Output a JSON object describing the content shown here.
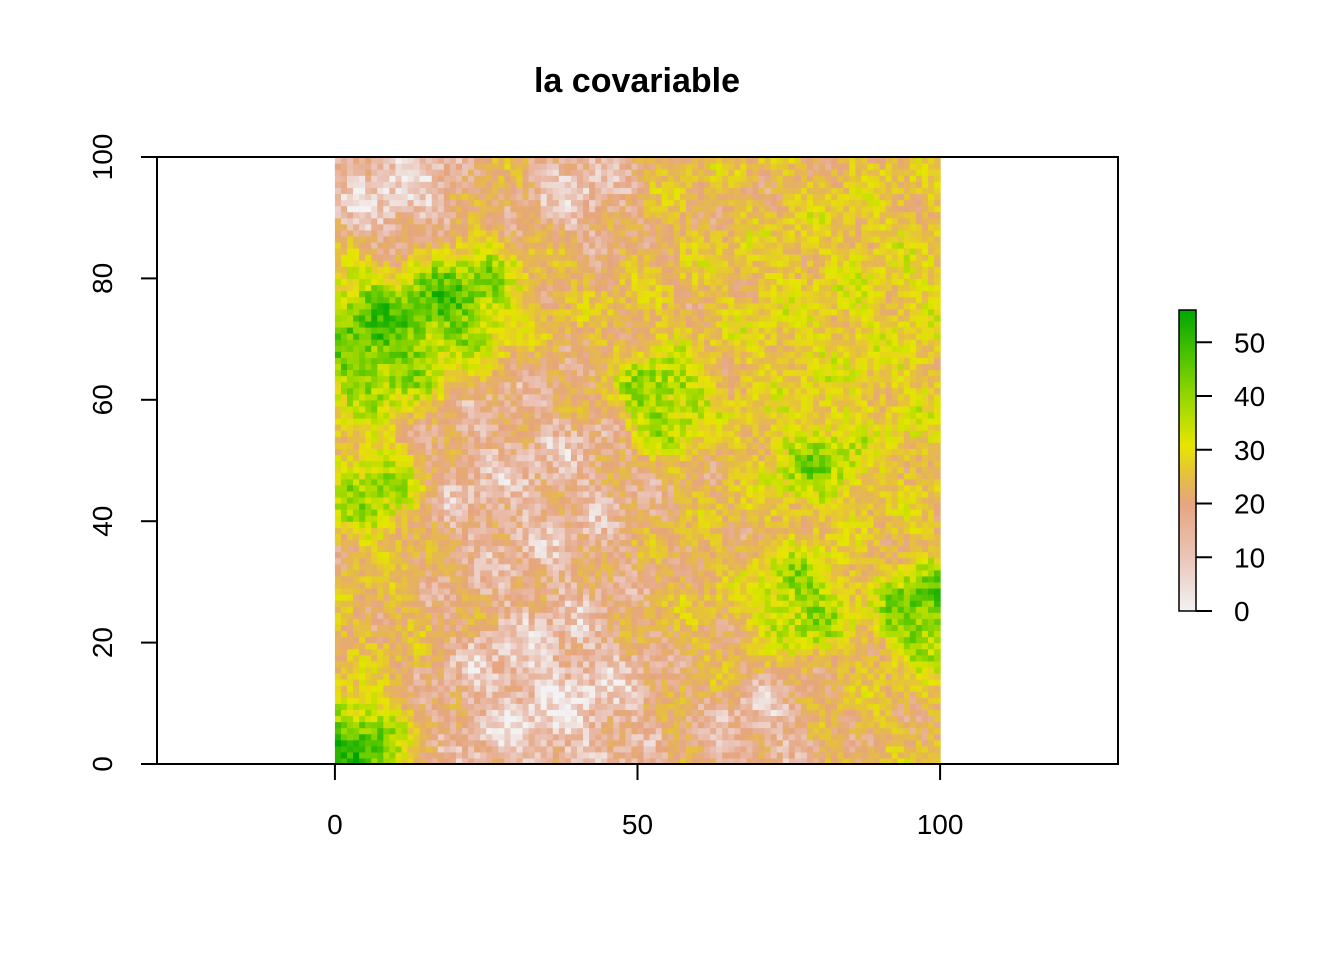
{
  "chart_data": {
    "type": "heatmap",
    "title": "la covariable",
    "xlabel": "",
    "ylabel": "",
    "xlim": [
      -29.4,
      129.4
    ],
    "ylim": [
      0,
      100
    ],
    "raster_extent": {
      "x": [
        0,
        100
      ],
      "y": [
        0,
        100
      ]
    },
    "raster_resolution": [
      100,
      100
    ],
    "x_ticks": [
      0,
      50,
      100
    ],
    "y_ticks": [
      0,
      20,
      40,
      60,
      80,
      100
    ],
    "value_range": [
      0,
      56
    ],
    "legend": {
      "position": "right",
      "ticks": [
        0,
        10,
        20,
        30,
        40,
        50
      ],
      "colors": [
        "#f2f2f2",
        "#eac4b8",
        "#e6a57f",
        "#e6bf3f",
        "#e6e600",
        "#9bd800",
        "#4cc300",
        "#00a600"
      ]
    },
    "field_features": [
      {
        "x": 7,
        "y": 70,
        "value": 52,
        "spread": 6
      },
      {
        "x": 20,
        "y": 76,
        "value": 50,
        "spread": 5
      },
      {
        "x": 7,
        "y": 45,
        "value": 45,
        "spread": 4
      },
      {
        "x": 54,
        "y": 60,
        "value": 48,
        "spread": 4
      },
      {
        "x": 80,
        "y": 50,
        "value": 45,
        "spread": 4
      },
      {
        "x": 77,
        "y": 27,
        "value": 45,
        "spread": 4
      },
      {
        "x": 98,
        "y": 25,
        "value": 52,
        "spread": 4
      },
      {
        "x": 3,
        "y": 3,
        "value": 54,
        "spread": 4
      },
      {
        "x": 35,
        "y": 10,
        "value": 2,
        "spread": 9
      },
      {
        "x": 10,
        "y": 95,
        "value": 3,
        "spread": 6
      },
      {
        "x": 40,
        "y": 95,
        "value": 6,
        "spread": 5
      },
      {
        "x": 32,
        "y": 45,
        "value": 8,
        "spread": 10
      },
      {
        "x": 70,
        "y": 5,
        "value": 8,
        "spread": 5
      },
      {
        "x": 90,
        "y": 70,
        "value": 30,
        "spread": 12
      }
    ]
  }
}
